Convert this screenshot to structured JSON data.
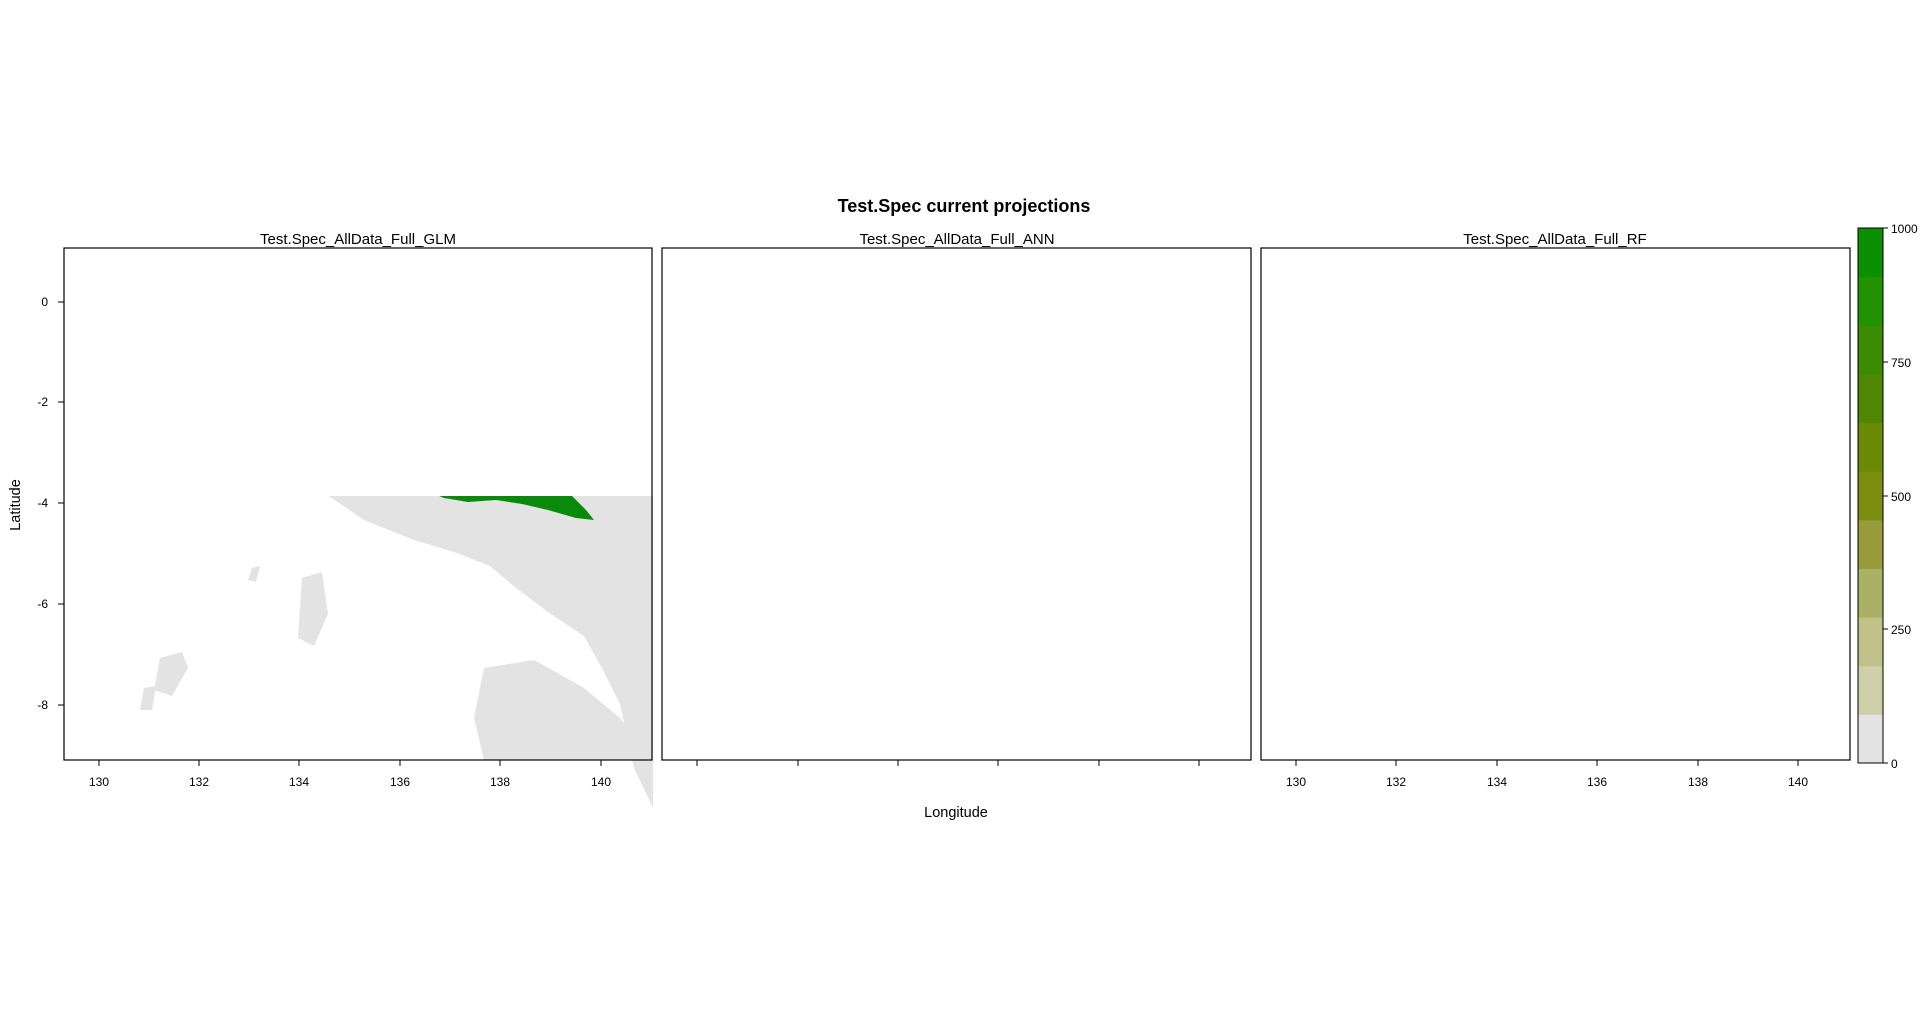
{
  "title": "Test.Spec current projections",
  "panels": [
    {
      "id": "glm",
      "title": "Test.Spec_AllData_Full_GLM"
    },
    {
      "id": "ann",
      "title": "Test.Spec_AllData_Full_ANN"
    },
    {
      "id": "rf",
      "title": "Test.Spec_AllData_Full_RF"
    }
  ],
  "axes": {
    "xlabel": "Longitude",
    "ylabel": "Latitude",
    "x_ticks": [
      "130",
      "132",
      "134",
      "136",
      "138",
      "140"
    ],
    "y_ticks": [
      "0",
      "-2",
      "-4",
      "-6",
      "-8"
    ],
    "x_range": [
      129.3,
      141.0
    ],
    "y_range": [
      -9.1,
      1.1
    ]
  },
  "legend": {
    "labels": [
      "1000",
      "750",
      "500",
      "250",
      "0"
    ],
    "colors": [
      "#e3e3e3",
      "#cfcfaa",
      "#c0c28a",
      "#aab066",
      "#979b3a",
      "#7c8e0f",
      "#6b8a06",
      "#4f8704",
      "#3b8b03",
      "#219302",
      "#0b9001"
    ],
    "range": [
      0,
      1000
    ]
  },
  "colors": {
    "land": "#e3e3e3",
    "presence": "#0a8a0a"
  }
}
